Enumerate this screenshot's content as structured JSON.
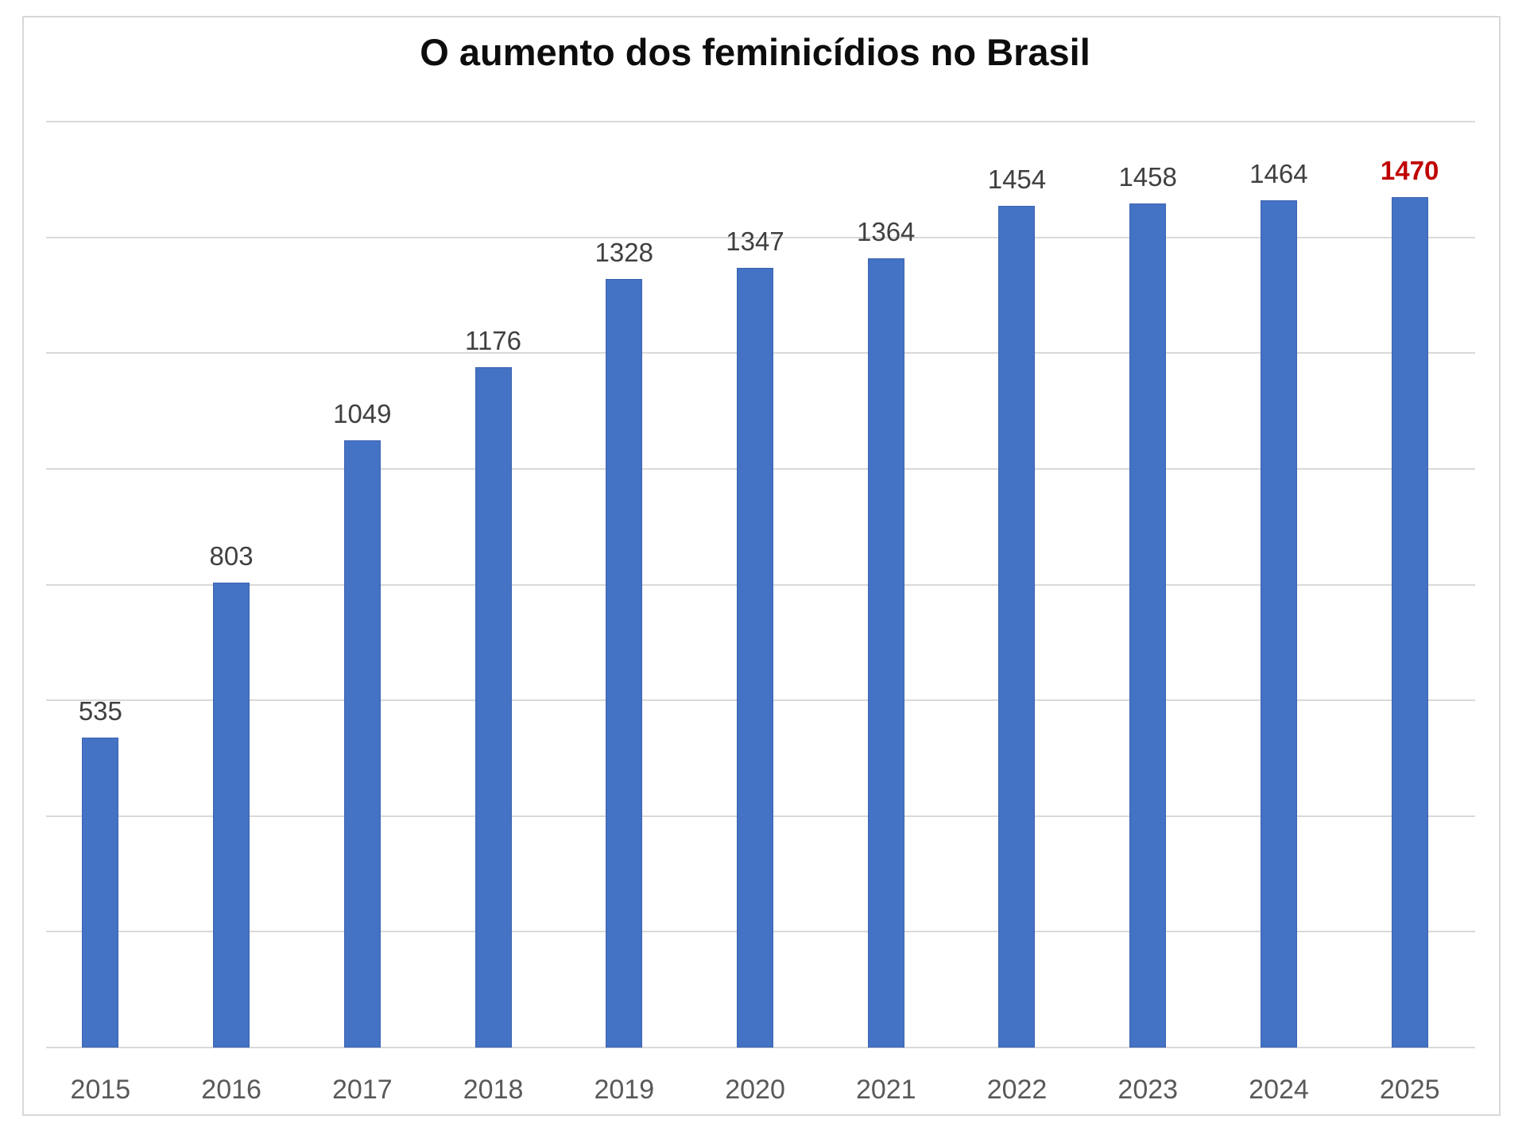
{
  "chart_data": {
    "type": "bar",
    "title": "O aumento dos feminicídios no Brasil",
    "categories": [
      "2015",
      "2016",
      "2017",
      "2018",
      "2019",
      "2020",
      "2021",
      "2022",
      "2023",
      "2024",
      "2025"
    ],
    "values": [
      535,
      803,
      1049,
      1176,
      1328,
      1347,
      1364,
      1454,
      1458,
      1464,
      1470
    ],
    "data_labels": [
      "535",
      "803",
      "1049",
      "1176",
      "1328",
      "1347",
      "1364",
      "1454",
      "1458",
      "1464",
      "1470"
    ],
    "highlighted_label_index": 10,
    "xlabel": "",
    "ylabel": "",
    "ylim": [
      0,
      1600
    ],
    "grid_interval": 200,
    "grid": true,
    "legend_position": "none",
    "colors": {
      "bar_fill": "#4472C4",
      "bar_border": "#3C64B0",
      "value_label": "#404040",
      "highlight_label": "#C00000",
      "tick_label": "#595959",
      "gridline": "#D9D9D9",
      "frame_border": "#D8D8D8",
      "title": "#0D0D0D",
      "background": "#FFFFFF"
    }
  }
}
